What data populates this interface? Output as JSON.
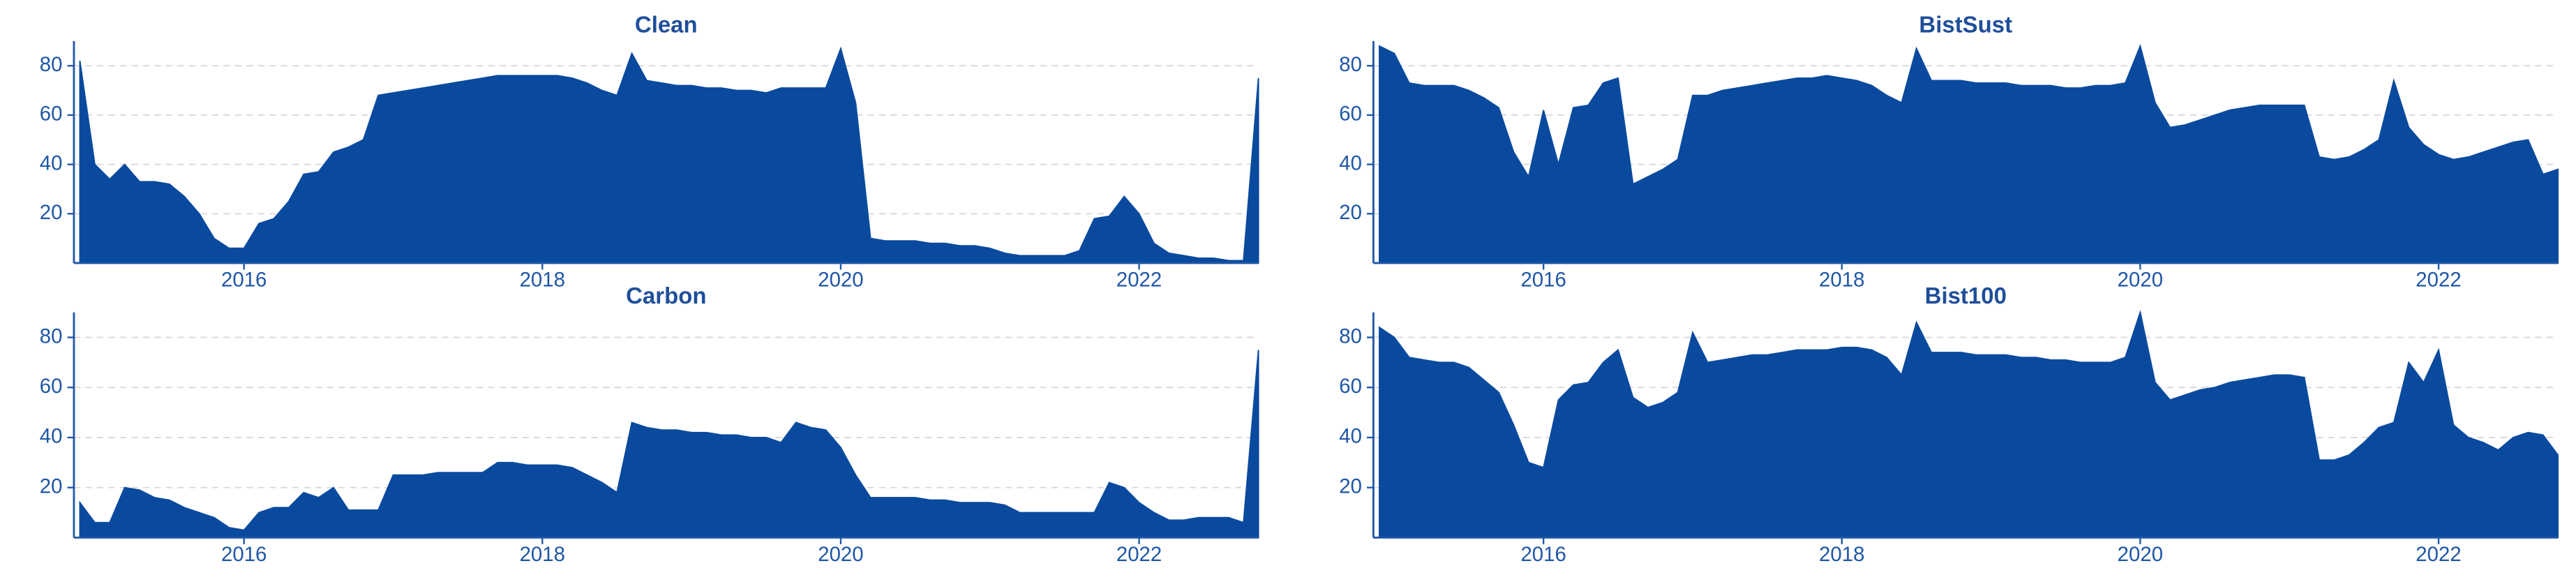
{
  "chart_data": [
    {
      "type": "area",
      "title": "Clean",
      "color": "#0a4a9e",
      "grid": true,
      "xlim": [
        2014.86,
        2022.8
      ],
      "xticks": [
        2016,
        2018,
        2020,
        2022
      ],
      "ylim": [
        0,
        90
      ],
      "yticks": [
        20,
        40,
        60,
        80
      ],
      "x": [
        2014.9,
        2015,
        2015.1,
        2015.2,
        2015.3,
        2015.4,
        2015.5,
        2015.6,
        2015.7,
        2015.8,
        2015.9,
        2016,
        2016.1,
        2016.2,
        2016.3,
        2016.4,
        2016.5,
        2016.6,
        2016.7,
        2016.8,
        2016.9,
        2017,
        2017.1,
        2017.2,
        2017.3,
        2017.4,
        2017.5,
        2017.6,
        2017.7,
        2017.8,
        2017.9,
        2018,
        2018.1,
        2018.2,
        2018.3,
        2018.4,
        2018.5,
        2018.6,
        2018.7,
        2018.8,
        2018.9,
        2019,
        2019.1,
        2019.2,
        2019.3,
        2019.4,
        2019.5,
        2019.6,
        2019.7,
        2019.8,
        2019.9,
        2020,
        2020.1,
        2020.2,
        2020.3,
        2020.4,
        2020.5,
        2020.6,
        2020.7,
        2020.8,
        2020.9,
        2021,
        2021.1,
        2021.2,
        2021.3,
        2021.4,
        2021.5,
        2021.6,
        2021.7,
        2021.8,
        2021.9,
        2022,
        2022.1,
        2022.2,
        2022.3,
        2022.4,
        2022.5,
        2022.6,
        2022.7,
        2022.8
      ],
      "values": [
        82,
        40,
        34,
        40,
        33,
        33,
        32,
        27,
        20,
        10,
        6,
        6,
        16,
        18,
        25,
        36,
        37,
        45,
        47,
        50,
        68,
        69,
        70,
        71,
        72,
        73,
        74,
        75,
        76,
        76,
        76,
        76,
        76,
        75,
        73,
        70,
        68,
        85,
        74,
        73,
        72,
        72,
        71,
        71,
        70,
        70,
        69,
        71,
        71,
        71,
        71,
        87,
        65,
        10,
        9,
        9,
        9,
        8,
        8,
        7,
        7,
        6,
        4,
        3,
        3,
        3,
        3,
        5,
        18,
        19,
        27,
        20,
        8,
        4,
        3,
        2,
        2,
        1,
        1,
        75
      ]
    },
    {
      "type": "area",
      "title": "BistSust",
      "color": "#0a4a9e",
      "grid": true,
      "xlim": [
        2014.86,
        2022.8
      ],
      "xticks": [
        2016,
        2018,
        2020,
        2022
      ],
      "ylim": [
        0,
        90
      ],
      "yticks": [
        20,
        40,
        60,
        80
      ],
      "x": [
        2014.9,
        2015,
        2015.1,
        2015.2,
        2015.3,
        2015.4,
        2015.5,
        2015.6,
        2015.7,
        2015.8,
        2015.9,
        2016,
        2016.1,
        2016.2,
        2016.3,
        2016.4,
        2016.5,
        2016.6,
        2016.7,
        2016.8,
        2016.9,
        2017,
        2017.1,
        2017.2,
        2017.3,
        2017.4,
        2017.5,
        2017.6,
        2017.7,
        2017.8,
        2017.9,
        2018,
        2018.1,
        2018.2,
        2018.3,
        2018.4,
        2018.5,
        2018.6,
        2018.7,
        2018.8,
        2018.9,
        2019,
        2019.1,
        2019.2,
        2019.3,
        2019.4,
        2019.5,
        2019.6,
        2019.7,
        2019.8,
        2019.9,
        2020,
        2020.1,
        2020.2,
        2020.3,
        2020.4,
        2020.5,
        2020.6,
        2020.7,
        2020.8,
        2020.9,
        2021,
        2021.1,
        2021.2,
        2021.3,
        2021.4,
        2021.5,
        2021.6,
        2021.7,
        2021.8,
        2021.9,
        2022,
        2022.1,
        2022.2,
        2022.3,
        2022.4,
        2022.5,
        2022.6,
        2022.7,
        2022.8
      ],
      "values": [
        88,
        85,
        73,
        72,
        72,
        72,
        70,
        67,
        63,
        45,
        35,
        62,
        40,
        63,
        64,
        73,
        75,
        32,
        35,
        38,
        42,
        68,
        68,
        70,
        71,
        72,
        73,
        74,
        75,
        75,
        76,
        75,
        74,
        72,
        68,
        65,
        87,
        74,
        74,
        74,
        73,
        73,
        73,
        72,
        72,
        72,
        71,
        71,
        72,
        72,
        73,
        88,
        65,
        55,
        56,
        58,
        60,
        62,
        63,
        64,
        64,
        64,
        64,
        43,
        42,
        43,
        46,
        50,
        74,
        55,
        48,
        44,
        42,
        43,
        45,
        47,
        49,
        50,
        36,
        38
      ]
    },
    {
      "type": "area",
      "title": "Carbon",
      "color": "#0a4a9e",
      "grid": true,
      "xlim": [
        2014.86,
        2022.8
      ],
      "xticks": [
        2016,
        2018,
        2020,
        2022
      ],
      "ylim": [
        0,
        90
      ],
      "yticks": [
        20,
        40,
        60,
        80
      ],
      "x": [
        2014.9,
        2015,
        2015.1,
        2015.2,
        2015.3,
        2015.4,
        2015.5,
        2015.6,
        2015.7,
        2015.8,
        2015.9,
        2016,
        2016.1,
        2016.2,
        2016.3,
        2016.4,
        2016.5,
        2016.6,
        2016.7,
        2016.8,
        2016.9,
        2017,
        2017.1,
        2017.2,
        2017.3,
        2017.4,
        2017.5,
        2017.6,
        2017.7,
        2017.8,
        2017.9,
        2018,
        2018.1,
        2018.2,
        2018.3,
        2018.4,
        2018.5,
        2018.6,
        2018.7,
        2018.8,
        2018.9,
        2019,
        2019.1,
        2019.2,
        2019.3,
        2019.4,
        2019.5,
        2019.6,
        2019.7,
        2019.8,
        2019.9,
        2020,
        2020.1,
        2020.2,
        2020.3,
        2020.4,
        2020.5,
        2020.6,
        2020.7,
        2020.8,
        2020.9,
        2021,
        2021.1,
        2021.2,
        2021.3,
        2021.4,
        2021.5,
        2021.6,
        2021.7,
        2021.8,
        2021.9,
        2022,
        2022.1,
        2022.2,
        2022.3,
        2022.4,
        2022.5,
        2022.6,
        2022.7,
        2022.8
      ],
      "values": [
        14,
        6,
        6,
        20,
        19,
        16,
        15,
        12,
        10,
        8,
        4,
        3,
        10,
        12,
        12,
        18,
        16,
        20,
        11,
        11,
        11,
        25,
        25,
        25,
        26,
        26,
        26,
        26,
        30,
        30,
        29,
        29,
        29,
        28,
        25,
        22,
        18,
        46,
        44,
        43,
        43,
        42,
        42,
        41,
        41,
        40,
        40,
        38,
        46,
        44,
        43,
        36,
        25,
        16,
        16,
        16,
        16,
        15,
        15,
        14,
        14,
        14,
        13,
        10,
        10,
        10,
        10,
        10,
        10,
        22,
        20,
        14,
        10,
        7,
        7,
        8,
        8,
        8,
        6,
        75
      ]
    },
    {
      "type": "area",
      "title": "Bist100",
      "color": "#0a4a9e",
      "grid": true,
      "xlim": [
        2014.86,
        2022.8
      ],
      "xticks": [
        2016,
        2018,
        2020,
        2022
      ],
      "ylim": [
        0,
        90
      ],
      "yticks": [
        20,
        40,
        60,
        80
      ],
      "x": [
        2014.9,
        2015,
        2015.1,
        2015.2,
        2015.3,
        2015.4,
        2015.5,
        2015.6,
        2015.7,
        2015.8,
        2015.9,
        2016,
        2016.1,
        2016.2,
        2016.3,
        2016.4,
        2016.5,
        2016.6,
        2016.7,
        2016.8,
        2016.9,
        2017,
        2017.1,
        2017.2,
        2017.3,
        2017.4,
        2017.5,
        2017.6,
        2017.7,
        2017.8,
        2017.9,
        2018,
        2018.1,
        2018.2,
        2018.3,
        2018.4,
        2018.5,
        2018.6,
        2018.7,
        2018.8,
        2018.9,
        2019,
        2019.1,
        2019.2,
        2019.3,
        2019.4,
        2019.5,
        2019.6,
        2019.7,
        2019.8,
        2019.9,
        2020,
        2020.1,
        2020.2,
        2020.3,
        2020.4,
        2020.5,
        2020.6,
        2020.7,
        2020.8,
        2020.9,
        2021,
        2021.1,
        2021.2,
        2021.3,
        2021.4,
        2021.5,
        2021.6,
        2021.7,
        2021.8,
        2021.9,
        2022,
        2022.1,
        2022.2,
        2022.3,
        2022.4,
        2022.5,
        2022.6,
        2022.7,
        2022.8
      ],
      "values": [
        84,
        80,
        72,
        71,
        70,
        70,
        68,
        63,
        58,
        45,
        30,
        28,
        55,
        61,
        62,
        70,
        75,
        56,
        52,
        54,
        58,
        82,
        70,
        71,
        72,
        73,
        73,
        74,
        75,
        75,
        75,
        76,
        76,
        75,
        72,
        65,
        86,
        74,
        74,
        74,
        73,
        73,
        73,
        72,
        72,
        71,
        71,
        70,
        70,
        70,
        72,
        90,
        62,
        55,
        57,
        59,
        60,
        62,
        63,
        64,
        65,
        65,
        64,
        31,
        31,
        33,
        38,
        44,
        46,
        70,
        62,
        75,
        45,
        40,
        38,
        35,
        40,
        42,
        41,
        33
      ]
    }
  ]
}
